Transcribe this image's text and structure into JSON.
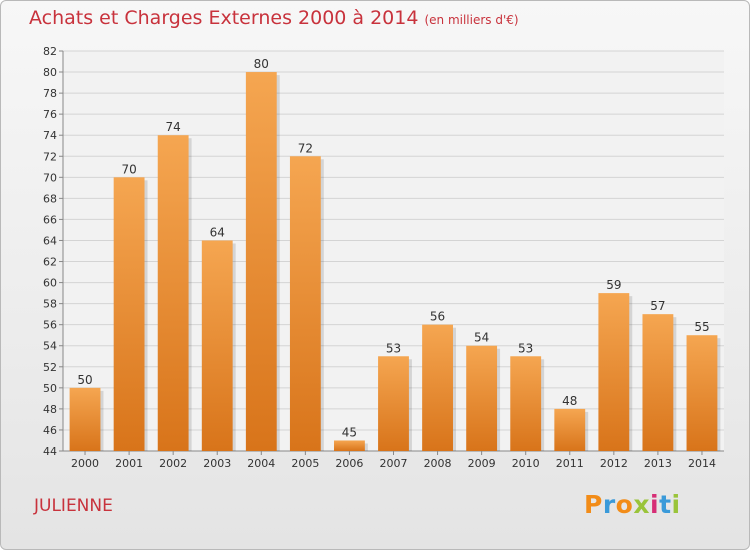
{
  "header": {
    "title": "Achats et Charges Externes 2000 à 2014",
    "subtitle": "(en milliers d'€)"
  },
  "footer": {
    "commune": "JULIENNE",
    "brand": "Proxiti"
  },
  "colors": {
    "title": "#c8323c",
    "bar_top": "#f5a651",
    "bar_bottom": "#d8741a",
    "logo_letters": [
      "#f28c18",
      "#3a9ad9",
      "#f28c18",
      "#9ac43a",
      "#d62e76",
      "#3a9ad9",
      "#9ac43a"
    ]
  },
  "chart_data": {
    "type": "bar",
    "categories": [
      "2000",
      "2001",
      "2002",
      "2003",
      "2004",
      "2005",
      "2006",
      "2007",
      "2008",
      "2009",
      "2010",
      "2011",
      "2012",
      "2013",
      "2014"
    ],
    "values": [
      50,
      70,
      74,
      64,
      80,
      72,
      45,
      53,
      56,
      54,
      53,
      48,
      59,
      57,
      55
    ],
    "ylim": [
      44,
      82
    ],
    "yticks": [
      44,
      46,
      48,
      50,
      52,
      54,
      56,
      58,
      60,
      62,
      64,
      66,
      68,
      70,
      72,
      74,
      76,
      78,
      80,
      82
    ],
    "grid": true,
    "data_labels": true
  }
}
